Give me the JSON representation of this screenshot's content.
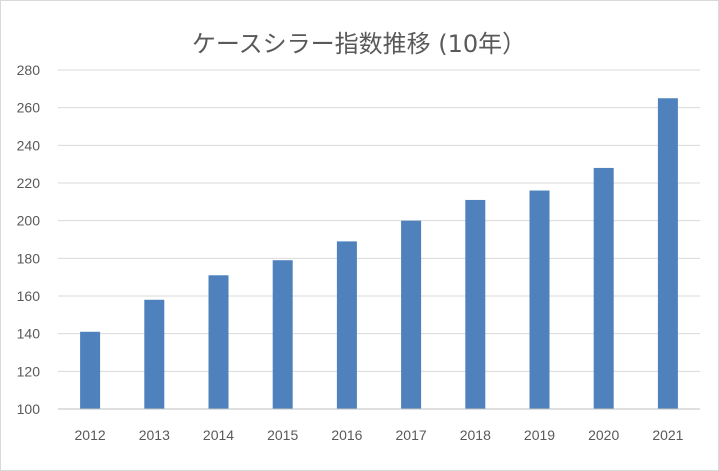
{
  "chart_data": {
    "type": "bar",
    "title": "ケースシラー指数推移 (10年）",
    "categories": [
      "2012",
      "2013",
      "2014",
      "2015",
      "2016",
      "2017",
      "2018",
      "2019",
      "2020",
      "2021"
    ],
    "values": [
      141,
      158,
      171,
      179,
      189,
      200,
      211,
      216,
      228,
      265
    ],
    "ylim": [
      100,
      280
    ],
    "yticks": [
      100,
      120,
      140,
      160,
      180,
      200,
      220,
      240,
      260,
      280
    ],
    "xlabel": "",
    "ylabel": "",
    "grid": true,
    "legend": "none",
    "bar_color": "#4f81bd"
  }
}
